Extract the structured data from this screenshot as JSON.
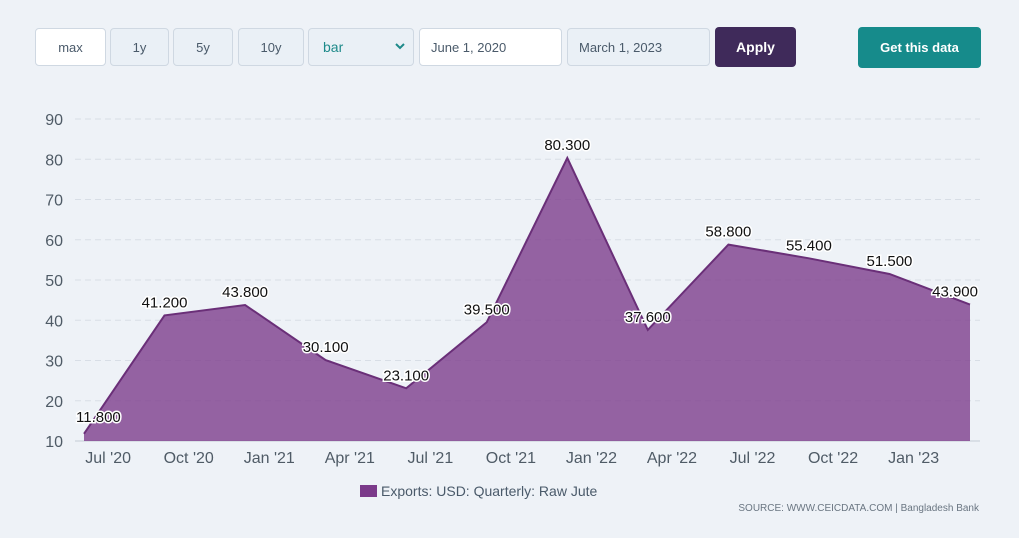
{
  "toolbar": {
    "ranges": [
      "max",
      "1y",
      "5y",
      "10y"
    ],
    "chart_type": "bar",
    "start_date": "June 1, 2020",
    "end_date": "March 1, 2023",
    "apply_label": "Apply",
    "get_data_label": "Get this data"
  },
  "colors": {
    "area_fill": "#7b3a8a",
    "area_line": "#6a2f78",
    "accent_teal": "#168b8b",
    "apply_bg": "#3f2a5a"
  },
  "legend": {
    "label": "Exports: USD: Quarterly: Raw Jute"
  },
  "source": {
    "text": "SOURCE: WWW.CEICDATA.COM | Bangladesh Bank"
  },
  "chart_data": {
    "type": "area",
    "series": [
      {
        "name": "Exports: USD: Quarterly: Raw Jute",
        "values": [
          11.8,
          41.2,
          43.8,
          30.1,
          23.1,
          39.5,
          80.3,
          37.6,
          58.8,
          55.4,
          51.5,
          43.9
        ],
        "labels": [
          "11.800",
          "41.200",
          "43.800",
          "30.100",
          "23.100",
          "39.500",
          "80.300",
          "37.600",
          "58.800",
          "55.400",
          "51.500",
          "43.900"
        ]
      }
    ],
    "x_tick_labels": [
      "Jul '20",
      "Oct '20",
      "Jan '21",
      "Apr '21",
      "Jul '21",
      "Oct '21",
      "Jan '22",
      "Apr '22",
      "Jul '22",
      "Oct '22",
      "Jan '23"
    ],
    "y_ticks": [
      10,
      20,
      30,
      40,
      50,
      60,
      70,
      80,
      90
    ],
    "ylim": [
      10,
      90
    ],
    "grid": true,
    "legend_position": "bottom-center"
  }
}
